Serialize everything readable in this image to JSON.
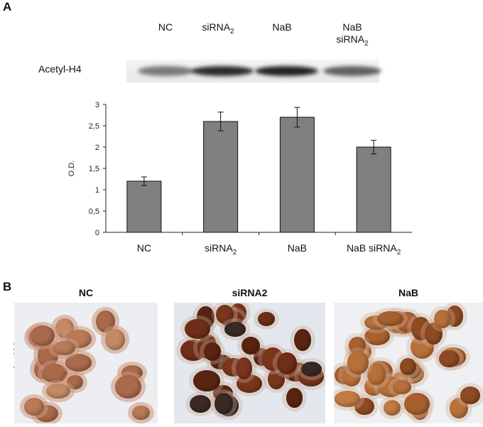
{
  "panel_a": {
    "letter": "A",
    "blot_label": "Acetyl-H4",
    "lanes": [
      {
        "main": "NC",
        "sub": "",
        "line2": ""
      },
      {
        "main": "siRNA",
        "sub": "2",
        "line2": ""
      },
      {
        "main": "NaB",
        "sub": "",
        "line2": ""
      },
      {
        "main": "NaB",
        "sub": "",
        "line2": "siRNA",
        "line2_sub": "2"
      }
    ],
    "band_intensity": [
      0.45,
      0.9,
      0.95,
      0.6
    ]
  },
  "chart_data": {
    "type": "bar",
    "categories": [
      "NC",
      "siRNA2",
      "NaB",
      "NaB siRNA2"
    ],
    "category_labels": [
      {
        "main": "NC",
        "sub": ""
      },
      {
        "main": "siRNA",
        "sub": "2"
      },
      {
        "main": "NaB",
        "sub": ""
      },
      {
        "main": "NaB siRNA",
        "sub": "2"
      }
    ],
    "values": [
      1.2,
      2.6,
      2.7,
      2.0
    ],
    "errors": [
      0.1,
      0.22,
      0.23,
      0.16
    ],
    "ylabel": "O.D.",
    "ylim": [
      0,
      3
    ],
    "yticks": [
      0,
      0.5,
      1,
      1.5,
      2,
      2.5,
      3
    ],
    "ytick_labels": [
      "0",
      "0,5",
      "1",
      "1,5",
      "2",
      "2,5",
      "3"
    ],
    "bar_color": "#808080",
    "grid": false
  },
  "panel_b": {
    "letter": "B",
    "side_label": "Ac-H4",
    "images": [
      {
        "title": "NC",
        "tone": "light"
      },
      {
        "title": "siRNA2",
        "tone": "dark"
      },
      {
        "title": "NaB",
        "tone": "medium"
      }
    ]
  }
}
